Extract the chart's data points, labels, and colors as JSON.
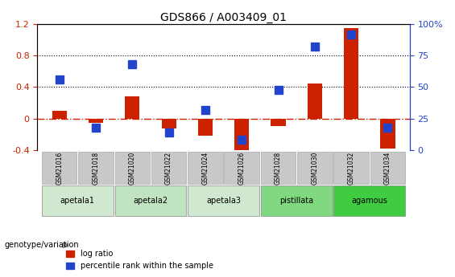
{
  "title": "GDS866 / A003409_01",
  "samples": [
    "GSM21016",
    "GSM21018",
    "GSM21020",
    "GSM21022",
    "GSM21024",
    "GSM21026",
    "GSM21028",
    "GSM21030",
    "GSM21032",
    "GSM21034"
  ],
  "log_ratio": [
    0.1,
    -0.05,
    0.28,
    -0.13,
    -0.22,
    -0.42,
    -0.1,
    0.45,
    1.15,
    -0.38
  ],
  "percentile": [
    0.56,
    0.18,
    0.68,
    0.14,
    0.32,
    0.08,
    0.48,
    0.82,
    0.92,
    0.18
  ],
  "groups": [
    {
      "label": "apetala1",
      "samples": [
        "GSM21016",
        "GSM21018"
      ],
      "color": "#d0e8d0"
    },
    {
      "label": "apetala2",
      "samples": [
        "GSM21020",
        "GSM21022"
      ],
      "color": "#c0e4c0"
    },
    {
      "label": "apetala3",
      "samples": [
        "GSM21024",
        "GSM21026"
      ],
      "color": "#d0e8d0"
    },
    {
      "label": "pistillata",
      "samples": [
        "GSM21028",
        "GSM21030"
      ],
      "color": "#80d880"
    },
    {
      "label": "agamous",
      "samples": [
        "GSM21032",
        "GSM21034"
      ],
      "color": "#40cc40"
    }
  ],
  "ylim_left": [
    -0.4,
    1.2
  ],
  "ylim_right": [
    0,
    100
  ],
  "bar_color": "#cc2200",
  "dot_color": "#2244cc",
  "hline_color": "#cc2200",
  "dotted_lines": [
    0.4,
    0.8
  ],
  "legend_items": [
    "log ratio",
    "percentile rank within the sample"
  ],
  "bar_width": 0.4,
  "dot_size": 7,
  "left_tick_labels": [
    "-0.4",
    "0",
    "0.4",
    "0.8",
    "1.2"
  ],
  "left_tick_vals": [
    -0.4,
    0.0,
    0.4,
    0.8,
    1.2
  ],
  "right_tick_labels": [
    "0",
    "25",
    "50",
    "75",
    "100%"
  ],
  "right_tick_vals": [
    0,
    25,
    50,
    75,
    100
  ],
  "group_colors": [
    "#d0e8d0",
    "#c0e4c0",
    "#d0e8d0",
    "#80d880",
    "#40cc40"
  ]
}
